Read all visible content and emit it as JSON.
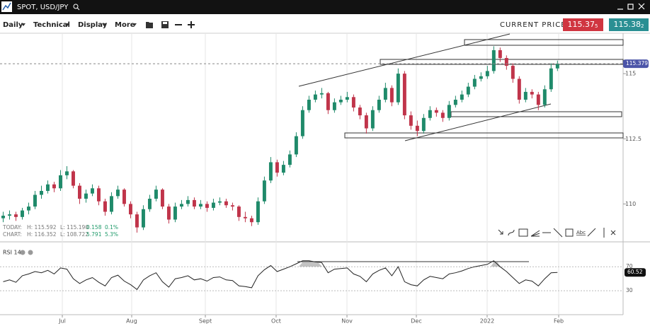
{
  "window": {
    "title": "SPOT, USD/JPY"
  },
  "toolbar": {
    "menus": [
      "Daily",
      "Technical",
      "Display",
      "More"
    ],
    "current_price_label": "CURRENT PRICE:",
    "bid": {
      "main": "115.37",
      "pip": "5"
    },
    "ask": {
      "main": "115.38",
      "pip": "2"
    }
  },
  "stats": {
    "rows": [
      [
        "TODAY:",
        "H: 115.592",
        "L: 115.190",
        "0.158",
        "0.1%"
      ],
      [
        "CHART:",
        "H: 116.352",
        "L: 108.722",
        "5.791",
        "5.3%"
      ]
    ]
  },
  "chart_data": [
    {
      "type": "candlestick",
      "up_color": "#1f8a6a",
      "down_color": "#c0344a",
      "grid": true,
      "xlim": [
        -0.5,
        97.3
      ],
      "xticks": [
        {
          "value": 9.28,
          "label": "Jul"
        },
        {
          "value": 20.17,
          "label": "Aug"
        },
        {
          "value": 31.73,
          "label": "Sept"
        },
        {
          "value": 42.84,
          "label": "Oct"
        },
        {
          "value": 53.96,
          "label": "Nov"
        },
        {
          "value": 64.85,
          "label": "Dec"
        },
        {
          "value": 75.96,
          "label": "2022"
        },
        {
          "value": 87.19,
          "label": "Feb"
        }
      ],
      "ylim": [
        108.6,
        116.55
      ],
      "yticks": [
        115,
        112.5,
        110
      ],
      "last_price": 115.379,
      "candles": [
        [
          109.45,
          109.7,
          109.3,
          109.55
        ],
        [
          109.55,
          109.75,
          109.4,
          109.6
        ],
        [
          109.6,
          109.7,
          109.35,
          109.5
        ],
        [
          109.5,
          109.85,
          109.4,
          109.75
        ],
        [
          109.75,
          110.05,
          109.6,
          109.9
        ],
        [
          109.9,
          110.5,
          109.8,
          110.35
        ],
        [
          110.35,
          110.7,
          110.2,
          110.5
        ],
        [
          110.5,
          110.9,
          110.4,
          110.75
        ],
        [
          110.75,
          110.85,
          110.45,
          110.6
        ],
        [
          110.6,
          111.3,
          110.5,
          111.1
        ],
        [
          111.1,
          111.45,
          110.95,
          111.25
        ],
        [
          111.25,
          111.3,
          110.6,
          110.7
        ],
        [
          110.7,
          110.8,
          110.0,
          110.2
        ],
        [
          110.2,
          110.55,
          110.05,
          110.4
        ],
        [
          110.4,
          110.75,
          110.3,
          110.6
        ],
        [
          110.6,
          110.7,
          109.95,
          110.1
        ],
        [
          110.1,
          110.2,
          109.55,
          109.7
        ],
        [
          109.7,
          110.45,
          109.6,
          110.3
        ],
        [
          110.3,
          110.7,
          110.2,
          110.55
        ],
        [
          110.55,
          110.6,
          109.9,
          110.0
        ],
        [
          110.0,
          110.1,
          109.45,
          109.6
        ],
        [
          109.6,
          109.7,
          108.9,
          109.1
        ],
        [
          109.1,
          109.95,
          109.0,
          109.8
        ],
        [
          109.8,
          110.35,
          109.7,
          110.2
        ],
        [
          110.2,
          110.7,
          110.1,
          110.55
        ],
        [
          110.55,
          110.6,
          109.8,
          109.9
        ],
        [
          109.9,
          110.0,
          109.25,
          109.4
        ],
        [
          109.4,
          110.05,
          109.3,
          109.9
        ],
        [
          109.9,
          110.15,
          109.8,
          110.0
        ],
        [
          110.0,
          110.3,
          109.9,
          110.15
        ],
        [
          110.15,
          110.25,
          109.8,
          109.9
        ],
        [
          109.9,
          110.15,
          109.8,
          110.0
        ],
        [
          110.0,
          110.1,
          109.7,
          109.85
        ],
        [
          109.85,
          110.2,
          109.75,
          110.05
        ],
        [
          110.05,
          110.25,
          109.95,
          110.1
        ],
        [
          110.1,
          110.2,
          109.85,
          109.95
        ],
        [
          109.95,
          110.05,
          109.75,
          109.9
        ],
        [
          109.9,
          109.95,
          109.35,
          109.5
        ],
        [
          109.5,
          109.7,
          109.3,
          109.45
        ],
        [
          109.45,
          109.55,
          109.15,
          109.3
        ],
        [
          109.3,
          110.25,
          109.2,
          110.1
        ],
        [
          110.1,
          111.05,
          110.0,
          110.9
        ],
        [
          110.9,
          111.8,
          110.8,
          111.6
        ],
        [
          111.6,
          111.7,
          111.05,
          111.2
        ],
        [
          111.2,
          111.65,
          111.1,
          111.5
        ],
        [
          111.5,
          112.05,
          111.4,
          111.9
        ],
        [
          111.9,
          112.75,
          111.8,
          112.6
        ],
        [
          112.6,
          113.75,
          112.5,
          113.6
        ],
        [
          113.6,
          114.15,
          113.5,
          114.0
        ],
        [
          114.0,
          114.35,
          113.9,
          114.2
        ],
        [
          114.2,
          114.45,
          114.05,
          114.25
        ],
        [
          114.25,
          114.3,
          113.45,
          113.6
        ],
        [
          113.6,
          114.05,
          113.5,
          113.9
        ],
        [
          113.9,
          114.15,
          113.8,
          114.0
        ],
        [
          114.0,
          114.3,
          113.9,
          114.1
        ],
        [
          114.1,
          114.2,
          113.55,
          113.7
        ],
        [
          113.7,
          113.8,
          113.25,
          113.4
        ],
        [
          113.4,
          113.5,
          112.7,
          112.9
        ],
        [
          112.9,
          113.75,
          112.8,
          113.6
        ],
        [
          113.6,
          114.15,
          113.5,
          114.0
        ],
        [
          114.0,
          114.65,
          113.9,
          114.45
        ],
        [
          114.45,
          114.55,
          113.75,
          113.9
        ],
        [
          113.9,
          115.2,
          113.8,
          115.0
        ],
        [
          115.0,
          115.1,
          113.25,
          113.4
        ],
        [
          113.4,
          113.55,
          112.85,
          113.0
        ],
        [
          113.0,
          113.2,
          112.6,
          112.8
        ],
        [
          112.8,
          113.45,
          112.7,
          113.3
        ],
        [
          113.3,
          113.75,
          113.2,
          113.6
        ],
        [
          113.6,
          113.7,
          113.35,
          113.5
        ],
        [
          113.5,
          113.6,
          113.15,
          113.3
        ],
        [
          113.3,
          113.95,
          113.2,
          113.8
        ],
        [
          113.8,
          114.15,
          113.7,
          114.0
        ],
        [
          114.0,
          114.35,
          113.9,
          114.2
        ],
        [
          114.2,
          114.65,
          114.1,
          114.5
        ],
        [
          114.5,
          114.95,
          114.4,
          114.8
        ],
        [
          114.8,
          115.05,
          114.7,
          114.9
        ],
        [
          114.9,
          115.3,
          114.8,
          115.1
        ],
        [
          115.1,
          116.05,
          115.0,
          115.9
        ],
        [
          115.9,
          116.0,
          115.45,
          115.6
        ],
        [
          115.6,
          115.7,
          115.15,
          115.3
        ],
        [
          115.3,
          115.4,
          114.65,
          114.8
        ],
        [
          114.8,
          114.9,
          113.85,
          114.0
        ],
        [
          114.0,
          114.45,
          113.9,
          114.3
        ],
        [
          114.3,
          114.4,
          114.05,
          114.2
        ],
        [
          114.2,
          114.3,
          113.6,
          113.8
        ],
        [
          113.8,
          114.55,
          113.7,
          114.4
        ],
        [
          114.4,
          115.4,
          114.3,
          115.2
        ],
        [
          115.2,
          115.5,
          115.1,
          115.38
        ]
      ]
    },
    {
      "type": "line",
      "title": "RSI 14",
      "color": "#222222",
      "ylim": [
        -10,
        108
      ],
      "yticks": [
        70,
        30
      ],
      "values": [
        45,
        48,
        44,
        55,
        58,
        62,
        60,
        64,
        58,
        68,
        66,
        50,
        42,
        48,
        52,
        44,
        38,
        52,
        56,
        46,
        40,
        32,
        48,
        55,
        60,
        45,
        36,
        50,
        52,
        55,
        48,
        50,
        46,
        52,
        53,
        48,
        47,
        38,
        37,
        35,
        55,
        65,
        72,
        62,
        66,
        70,
        75,
        80,
        80,
        78,
        77,
        60,
        66,
        67,
        68,
        58,
        54,
        45,
        58,
        64,
        68,
        55,
        70,
        45,
        40,
        38,
        48,
        54,
        52,
        50,
        58,
        60,
        63,
        67,
        70,
        72,
        74,
        80,
        70,
        62,
        52,
        42,
        48,
        46,
        38,
        50,
        60,
        60.52
      ]
    }
  ]
}
